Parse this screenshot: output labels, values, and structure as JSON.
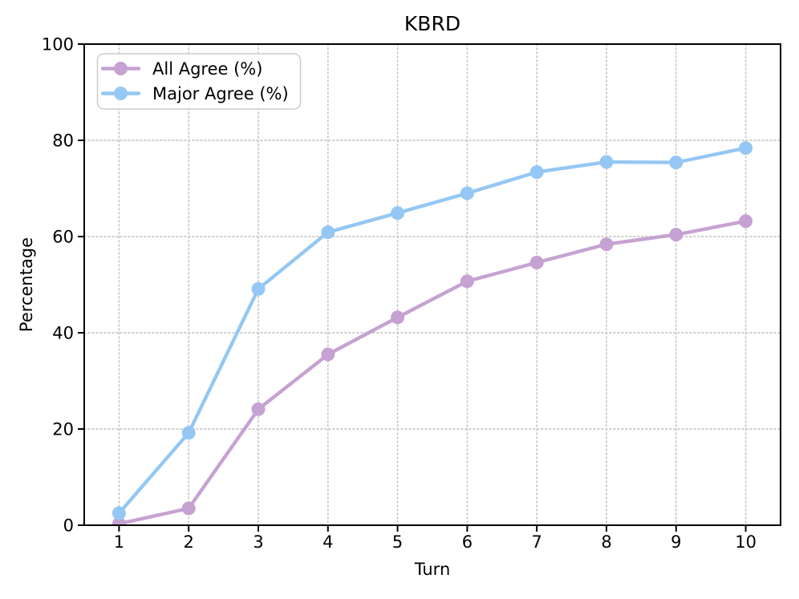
{
  "chart_data": {
    "type": "line",
    "title": "KBRD",
    "xlabel": "Turn",
    "ylabel": "Percentage",
    "x": [
      1,
      2,
      3,
      4,
      5,
      6,
      7,
      8,
      9,
      10
    ],
    "xticks": [
      1,
      2,
      3,
      4,
      5,
      6,
      7,
      8,
      9,
      10
    ],
    "yticks": [
      0,
      20,
      40,
      60,
      80,
      100
    ],
    "xlim": [
      0.5,
      10.5
    ],
    "ylim": [
      0,
      100
    ],
    "grid": true,
    "grid_style": "dotted",
    "legend_position": "upper-left",
    "series": [
      {
        "name": "All Agree (%)",
        "color": "#C6A2D2",
        "values": [
          0.3,
          3.5,
          24.1,
          35.5,
          43.2,
          50.7,
          54.6,
          58.4,
          60.4,
          63.2
        ]
      },
      {
        "name": "Major Agree (%)",
        "color": "#94C7F4",
        "values": [
          2.5,
          19.2,
          49.1,
          60.9,
          64.9,
          69.0,
          73.4,
          75.5,
          75.4,
          78.4
        ]
      }
    ],
    "colors": {
      "grid": "#C8C8C8",
      "spine": "#000000",
      "background": "#FFFFFF",
      "legend_border": "#CCCCCC"
    }
  }
}
